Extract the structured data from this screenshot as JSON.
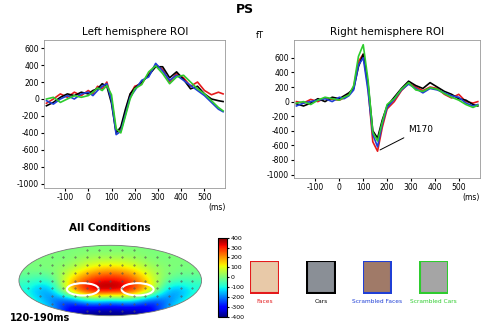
{
  "title": "PS",
  "chart_data": [
    {
      "type": "line",
      "title": "Left hemisphere ROI",
      "x_label": "(ms)",
      "x": [
        -180,
        -150,
        -120,
        -90,
        -60,
        -30,
        0,
        20,
        40,
        60,
        80,
        100,
        120,
        140,
        160,
        180,
        200,
        230,
        260,
        290,
        320,
        350,
        380,
        410,
        440,
        470,
        500,
        530,
        560,
        580
      ],
      "xlim": [
        -190,
        590
      ],
      "xticks": [
        -100,
        0,
        100,
        200,
        300,
        400,
        500
      ],
      "ylim": [
        -1050,
        700
      ],
      "yticks": [
        600,
        400,
        200,
        0,
        -200,
        -400,
        -600,
        -800,
        -1000
      ],
      "grid": false,
      "series": [
        {
          "name": "Faces",
          "color": "#e41a1c",
          "values": [
            -50,
            0,
            60,
            20,
            80,
            40,
            100,
            60,
            150,
            120,
            200,
            0,
            -380,
            -360,
            -150,
            50,
            150,
            180,
            300,
            400,
            350,
            200,
            300,
            250,
            150,
            200,
            100,
            50,
            80,
            60
          ]
        },
        {
          "name": "Cars",
          "color": "#000000",
          "values": [
            -80,
            -40,
            20,
            60,
            40,
            80,
            60,
            100,
            120,
            180,
            150,
            -50,
            -400,
            -330,
            -120,
            60,
            130,
            200,
            280,
            380,
            380,
            250,
            320,
            230,
            120,
            150,
            60,
            0,
            -20,
            -30
          ]
        },
        {
          "name": "Scrambled Faces",
          "color": "#1f3fd6",
          "values": [
            -20,
            -60,
            0,
            40,
            0,
            60,
            80,
            40,
            100,
            150,
            180,
            -20,
            -420,
            -380,
            -180,
            20,
            100,
            220,
            260,
            420,
            330,
            220,
            280,
            220,
            160,
            100,
            40,
            -40,
            -120,
            -150
          ]
        },
        {
          "name": "Scrambled Cars",
          "color": "#2ecc2e",
          "values": [
            0,
            20,
            -40,
            0,
            40,
            20,
            40,
            80,
            130,
            100,
            160,
            50,
            -350,
            -400,
            -200,
            0,
            120,
            170,
            320,
            390,
            300,
            180,
            260,
            280,
            200,
            120,
            60,
            -20,
            -100,
            -140
          ]
        }
      ]
    },
    {
      "type": "line",
      "title": "Right hemisphere ROI",
      "x_label": "(ms)",
      "y_label": "fT",
      "x": [
        -180,
        -150,
        -120,
        -90,
        -60,
        -30,
        0,
        20,
        40,
        60,
        80,
        100,
        120,
        140,
        160,
        180,
        200,
        230,
        260,
        290,
        320,
        350,
        380,
        410,
        440,
        470,
        500,
        530,
        560,
        580
      ],
      "xlim": [
        -190,
        590
      ],
      "xticks": [
        -100,
        0,
        100,
        200,
        300,
        400,
        500
      ],
      "ylim": [
        -1050,
        850
      ],
      "yticks": [
        600,
        400,
        200,
        0,
        -200,
        -400,
        -600,
        -800,
        -1000
      ],
      "grid": false,
      "annotations": [
        {
          "text": "M170",
          "x": 160,
          "y": -680
        }
      ],
      "series": [
        {
          "name": "Faces",
          "color": "#e41a1c",
          "values": [
            0,
            -20,
            30,
            0,
            50,
            30,
            20,
            50,
            100,
            200,
            550,
            650,
            200,
            -550,
            -680,
            -350,
            -100,
            0,
            150,
            250,
            200,
            150,
            200,
            180,
            100,
            50,
            100,
            0,
            -20,
            0
          ]
        },
        {
          "name": "Cars",
          "color": "#000000",
          "values": [
            -30,
            -60,
            -20,
            40,
            0,
            60,
            40,
            80,
            120,
            180,
            480,
            650,
            250,
            -400,
            -500,
            -250,
            -60,
            60,
            180,
            280,
            220,
            180,
            260,
            200,
            140,
            100,
            40,
            20,
            -40,
            -60
          ]
        },
        {
          "name": "Scrambled Faces",
          "color": "#1f3fd6",
          "values": [
            -60,
            -20,
            0,
            20,
            40,
            0,
            60,
            40,
            80,
            160,
            500,
            600,
            150,
            -450,
            -620,
            -300,
            -80,
            30,
            160,
            240,
            180,
            120,
            180,
            160,
            120,
            80,
            60,
            -20,
            -60,
            -40
          ]
        },
        {
          "name": "Scrambled Cars",
          "color": "#2ecc2e",
          "values": [
            -20,
            0,
            -40,
            20,
            60,
            40,
            20,
            60,
            90,
            220,
            620,
            780,
            300,
            -420,
            -540,
            -280,
            -40,
            40,
            170,
            260,
            160,
            140,
            190,
            170,
            110,
            60,
            20,
            -40,
            -80,
            -50
          ]
        }
      ]
    }
  ],
  "topomap": {
    "title": "All Conditions",
    "time_label": "120-190ms",
    "cells": [
      [
        0,
        0,
        0,
        0,
        0,
        0,
        0,
        0,
        0
      ],
      [
        0,
        0,
        0,
        50,
        50,
        50,
        0,
        0,
        0
      ],
      [
        0,
        0,
        50,
        150,
        200,
        150,
        50,
        0,
        0
      ],
      [
        -50,
        -100,
        150,
        300,
        350,
        300,
        100,
        -50,
        -50
      ],
      [
        -100,
        -250,
        200,
        400,
        400,
        350,
        150,
        -250,
        -100
      ],
      [
        -50,
        -200,
        -300,
        -100,
        -200,
        -100,
        -300,
        -200,
        -50
      ],
      [
        0,
        -100,
        -350,
        -400,
        -400,
        -400,
        -350,
        -100,
        0
      ]
    ],
    "colorbar_range": [
      -400,
      400
    ],
    "colorbar_ticks": [
      400,
      300,
      200,
      100,
      0,
      -100,
      -200,
      -300,
      -400
    ]
  }
}
